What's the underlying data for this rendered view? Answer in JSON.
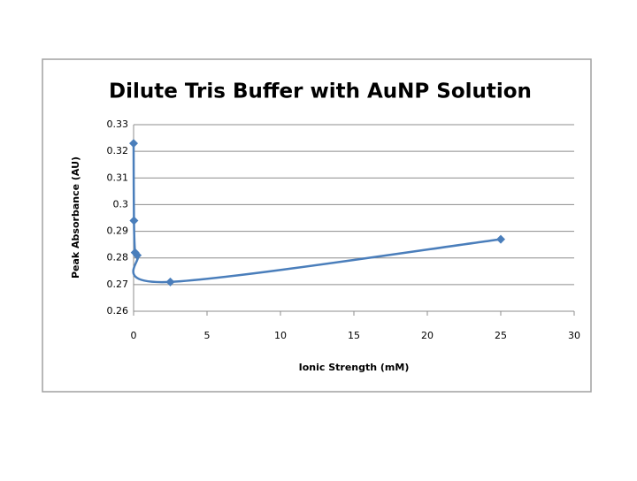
{
  "chart_data": {
    "type": "scatter",
    "title": "Dilute Tris Buffer with AuNP Solution",
    "x_label": "Ionic Strength (mM)",
    "y_label": "Peak Absorbance (AU)",
    "series": [
      {
        "name": "Peak Absorbance",
        "color": "#4a7ebb",
        "x": [
          0,
          0.025,
          0.1,
          0.25,
          2.5,
          25
        ],
        "values": [
          0.323,
          0.294,
          0.282,
          0.281,
          0.271,
          0.287
        ]
      }
    ],
    "xlim": [
      0,
      30
    ],
    "xticks": [
      0,
      5,
      10,
      15,
      20,
      25,
      30
    ],
    "ylim": [
      0.26,
      0.33
    ],
    "yticks": [
      0.26,
      0.27,
      0.28,
      0.29,
      0.3,
      0.31,
      0.32,
      0.33
    ],
    "grid": true,
    "smooth": true
  }
}
